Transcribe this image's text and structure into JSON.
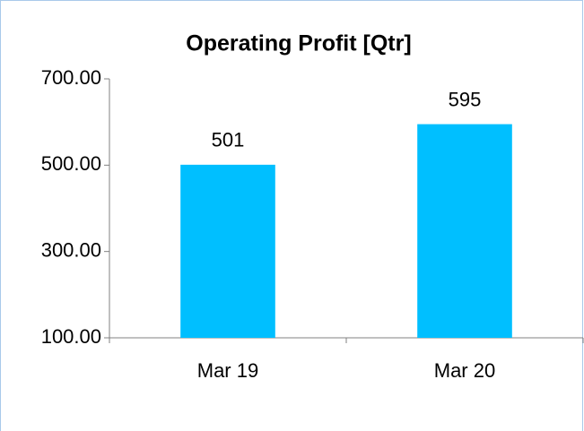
{
  "chart_data": {
    "type": "bar",
    "title": "Operating Profit [Qtr]",
    "categories": [
      "Mar 19",
      "Mar 20"
    ],
    "values": [
      501,
      595
    ],
    "color": "#00bfff",
    "ylim": [
      100,
      700
    ],
    "yticks": [
      {
        "value": 100,
        "label": "100.00"
      },
      {
        "value": 300,
        "label": "300.00"
      },
      {
        "value": 500,
        "label": "500.00"
      },
      {
        "value": 700,
        "label": "700.00"
      }
    ],
    "grid": false
  }
}
